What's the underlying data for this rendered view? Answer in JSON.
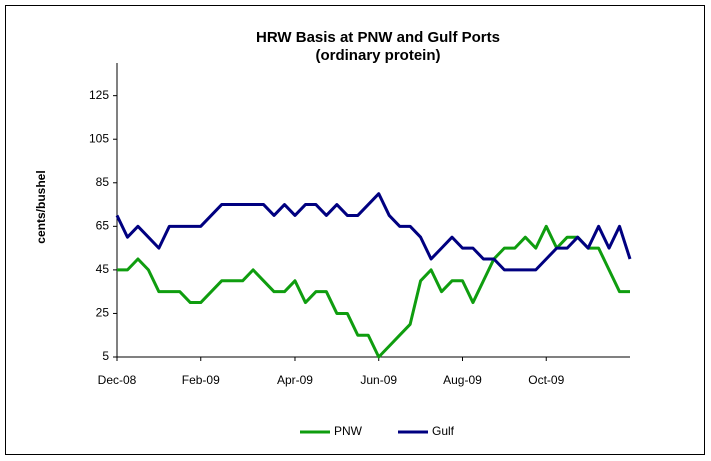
{
  "chart_data": {
    "type": "line",
    "title": "HRW Basis at PNW and Gulf Ports",
    "subtitle": "(ordinary protein)",
    "ylabel": "cents/bushel",
    "categories": [
      "Dec-08",
      null,
      null,
      null,
      null,
      null,
      null,
      null,
      "Feb-09",
      null,
      null,
      null,
      null,
      null,
      null,
      null,
      null,
      "Apr-09",
      null,
      null,
      null,
      null,
      null,
      null,
      null,
      "Jun-09",
      null,
      null,
      null,
      null,
      null,
      null,
      null,
      "Aug-09",
      null,
      null,
      null,
      null,
      null,
      null,
      null,
      "Oct-09",
      null,
      null,
      null,
      null,
      null,
      null,
      null,
      null
    ],
    "series": [
      {
        "name": "PNW",
        "color": "#0f9d0f",
        "values": [
          45,
          45,
          50,
          45,
          35,
          35,
          35,
          30,
          30,
          35,
          40,
          40,
          40,
          45,
          40,
          35,
          35,
          40,
          30,
          35,
          35,
          25,
          25,
          15,
          15,
          5,
          10,
          15,
          20,
          40,
          45,
          35,
          40,
          40,
          30,
          40,
          50,
          55,
          55,
          60,
          55,
          65,
          55,
          60,
          60,
          55,
          55,
          45,
          35,
          35
        ]
      },
      {
        "name": "Gulf",
        "color": "#000080",
        "values": [
          70,
          60,
          65,
          60,
          55,
          65,
          65,
          65,
          65,
          70,
          75,
          75,
          75,
          75,
          75,
          70,
          75,
          70,
          75,
          75,
          70,
          75,
          70,
          70,
          75,
          80,
          70,
          65,
          65,
          60,
          50,
          55,
          60,
          55,
          55,
          50,
          50,
          45,
          45,
          45,
          45,
          50,
          55,
          55,
          60,
          55,
          65,
          55,
          65,
          50
        ]
      }
    ],
    "ylim": [
      5,
      140
    ],
    "yticks": [
      5,
      25,
      45,
      65,
      85,
      105,
      125
    ],
    "legend": "bottom"
  }
}
